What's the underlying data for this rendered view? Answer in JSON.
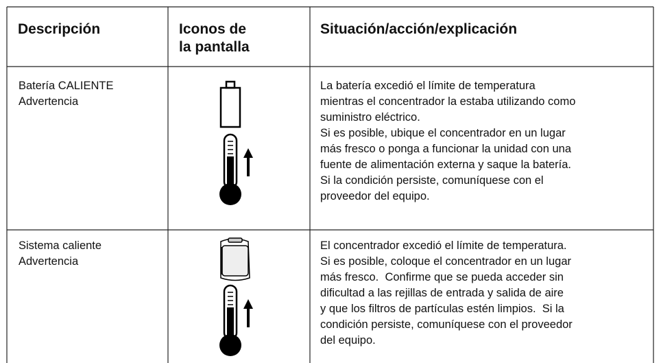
{
  "table": {
    "headers": [
      [
        "Descripción"
      ],
      [
        "Iconos de",
        "la pantalla"
      ],
      [
        "Situación/acción/explicación"
      ]
    ],
    "rows": [
      {
        "description": [
          "Batería CALIENTE",
          "Advertencia"
        ],
        "explanation": [
          "La batería excedió el límite de temperatura",
          "mientras el concentrador la estaba utilizando como",
          "suministro eléctrico.",
          "Si es posible, ubique el concentrador en un lugar",
          "más fresco o ponga a funcionar la unidad con una",
          "fuente de alimentación externa y saque la batería.",
          "Si la condición persiste, comuníquese con el",
          "proveedor del equipo."
        ]
      },
      {
        "description": [
          "Sistema caliente",
          "Advertencia"
        ],
        "explanation": [
          "El concentrador excedió el límite de temperatura.",
          "Si es posible, coloque el concentrador en un lugar",
          "más fresco.  Confirme que se pueda acceder sin",
          "dificultad a las rejillas de entrada y salida de aire",
          "y que los filtros de partículas estén limpios.  Si la",
          "condición persiste, comuníquese con el proveedor",
          "del equipo."
        ]
      }
    ]
  }
}
